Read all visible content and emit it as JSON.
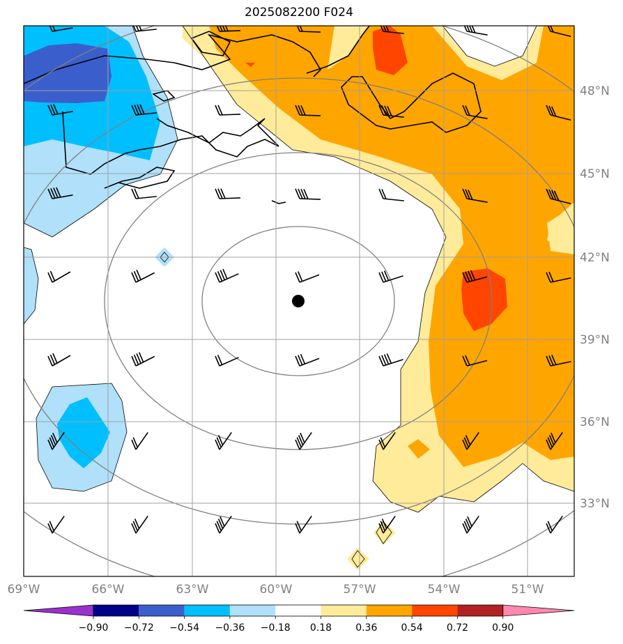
{
  "chart_data": {
    "type": "heatmap",
    "title": "2025082200 F024",
    "projection": "orthographic-style map with lat/lon grid and wind barbs",
    "lon_ticks": [
      "69°W",
      "66°W",
      "63°W",
      "60°W",
      "57°W",
      "54°W",
      "51°W"
    ],
    "lat_ticks": [
      "48°N",
      "45°N",
      "42°N",
      "39°N",
      "36°N",
      "33°N"
    ],
    "lon_range": [
      -69,
      -48.5
    ],
    "lat_range": [
      30.5,
      50.5
    ],
    "center_marker": {
      "lon": -59.2,
      "lat": 40.4
    },
    "colorbar": {
      "tick_labels": [
        "−0.90",
        "−0.72",
        "−0.54",
        "−0.36",
        "−0.18",
        "0.18",
        "0.36",
        "0.54",
        "0.72",
        "0.90"
      ],
      "bins": [
        {
          "color": "#9932cc"
        },
        {
          "color": "#00008b"
        },
        {
          "color": "#3a5fcd"
        },
        {
          "color": "#00bfff"
        },
        {
          "color": "#b0e0fa"
        },
        {
          "color": "#ffffff"
        },
        {
          "color": "#ffeb99"
        },
        {
          "color": "#ffa500"
        },
        {
          "color": "#ff4500"
        },
        {
          "color": "#b22222"
        },
        {
          "color": "#ff88b0"
        }
      ],
      "extend": "both"
    }
  }
}
